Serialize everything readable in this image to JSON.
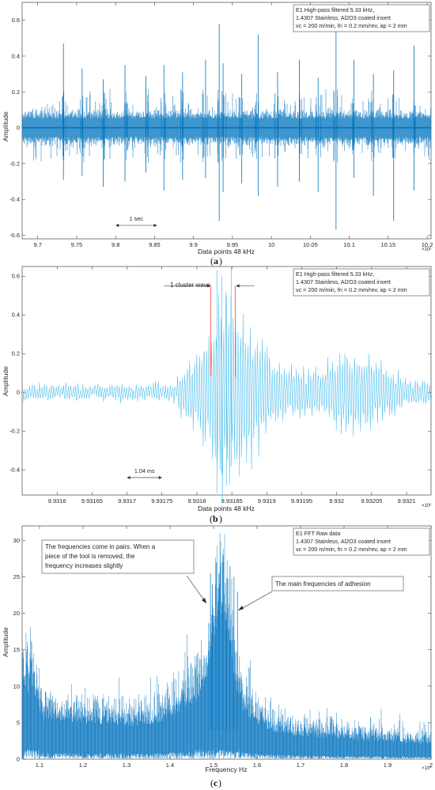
{
  "chart_data": [
    {
      "type": "line",
      "panel": "a",
      "caption": "a",
      "legend_lines": [
        "E1 High-pass filtered 5.33 kHz,",
        "1.4307 Stainless, Al2O3 coated insert",
        "vc = 200 m/min, fn = 0.2 mm/rev, ap = 2 mm"
      ],
      "xlabel": "Data points 48 kHz",
      "ylabel": "Amplitude",
      "x_exponent": "×10⁶",
      "xlim": [
        9.68,
        10.205
      ],
      "ylim": [
        -0.62,
        0.7
      ],
      "xticks": [
        9.7,
        9.75,
        9.8,
        9.85,
        9.9,
        9.95,
        10,
        10.05,
        10.1,
        10.15,
        10.2
      ],
      "xticklabels": [
        "9.7",
        "9.75",
        "9.8",
        "9.85",
        "9.9",
        "9.95",
        "10",
        "10.05",
        "10.1",
        "10.15",
        "10.2"
      ],
      "yticks": [
        -0.6,
        -0.4,
        -0.2,
        0,
        0.2,
        0.4,
        0.6
      ],
      "yticklabels": [
        "-0.6",
        "-0.4",
        "-0.2",
        "0",
        "0.2",
        "0.4",
        "0.6"
      ],
      "series_color": "#0072BD",
      "annotation": {
        "text": "1 sec",
        "x_from": 9.8,
        "x_to": 9.853,
        "y": -0.545
      },
      "spikes": [
        {
          "x": 9.733,
          "top": 0.47,
          "bottom": -0.29
        },
        {
          "x": 9.757,
          "top": 0.33,
          "bottom": -0.27
        },
        {
          "x": 9.784,
          "top": 0.27,
          "bottom": -0.33
        },
        {
          "x": 9.812,
          "top": 0.35,
          "bottom": -0.3
        },
        {
          "x": 9.839,
          "top": 0.29,
          "bottom": -0.25
        },
        {
          "x": 9.862,
          "top": 0.35,
          "bottom": -0.35
        },
        {
          "x": 9.886,
          "top": 0.31,
          "bottom": -0.29
        },
        {
          "x": 9.9155,
          "top": 0.38,
          "bottom": -0.28
        },
        {
          "x": 9.933,
          "top": 0.58,
          "bottom": -0.52
        },
        {
          "x": 9.938,
          "top": 0.36,
          "bottom": -0.36
        },
        {
          "x": 9.962,
          "top": 0.3,
          "bottom": -0.31
        },
        {
          "x": 9.983,
          "top": 0.52,
          "bottom": -0.38
        },
        {
          "x": 10.008,
          "top": 0.31,
          "bottom": -0.33
        },
        {
          "x": 10.036,
          "top": 0.38,
          "bottom": -0.3
        },
        {
          "x": 10.06,
          "top": 0.28,
          "bottom": -0.36
        },
        {
          "x": 10.083,
          "top": 0.57,
          "bottom": -0.57
        },
        {
          "x": 10.106,
          "top": 0.38,
          "bottom": -0.28
        },
        {
          "x": 10.131,
          "top": 0.3,
          "bottom": -0.38
        },
        {
          "x": 10.157,
          "top": 0.32,
          "bottom": -0.52
        },
        {
          "x": 10.183,
          "top": 0.46,
          "bottom": -0.35
        }
      ]
    },
    {
      "type": "line",
      "panel": "b",
      "caption": "b",
      "legend_lines": [
        "E1 High-pass filtered 5.33 kHz,",
        "1.4307 Stainless, Al2O3 coated insert",
        "vc = 200 m/min, fn = 0.2 mm/rev, ap = 2 mm"
      ],
      "xlabel": "Data points 48 kHz",
      "ylabel": "Amplitude",
      "x_exponent": "×10⁶",
      "xlim": [
        9.93155,
        9.932135
      ],
      "ylim": [
        -0.53,
        0.65
      ],
      "xticks": [
        9.9316,
        9.93165,
        9.9317,
        9.93175,
        9.9318,
        9.93185,
        9.9319,
        9.93195,
        9.932,
        9.93205,
        9.9321
      ],
      "xticklabels": [
        "9.9316",
        "9.93165",
        "9.9317",
        "9.93175",
        "9.9318",
        "9.93185",
        "9.9319",
        "9.93195",
        "9.932",
        "9.93205",
        "9.9321"
      ],
      "yticks": [
        -0.4,
        -0.2,
        0,
        0.2,
        0.4,
        0.6
      ],
      "yticklabels": [
        "-0.4",
        "-0.2",
        "0",
        "0.2",
        "0.4",
        "0.6"
      ],
      "series_color": "#4DBEEE",
      "peak_x": 9.93184,
      "annotation": {
        "text": "1.04 ms",
        "x_from": 9.9317,
        "x_to": 9.93175,
        "y": -0.44
      },
      "cluster": {
        "text": "1 cluster wave",
        "x_left": 9.93182,
        "x_right": 9.931855
      }
    },
    {
      "type": "line",
      "panel": "c",
      "caption": "c",
      "legend_lines": [
        "E1 FFT Raw data",
        "1.4307 Stainless, Al2O3 coated insert",
        "vc = 200 m/min, fn = 0.2 mm/rev, ap = 2 mm"
      ],
      "xlabel": "Frequency Hz",
      "ylabel": "Amplitude",
      "x_exponent": "×10⁴",
      "xlim": [
        1.06,
        2.0
      ],
      "ylim": [
        0,
        32
      ],
      "xticks": [
        1.1,
        1.2,
        1.3,
        1.4,
        1.5,
        1.6,
        1.7,
        1.8,
        1.9,
        2
      ],
      "xticklabels": [
        "1.1",
        "1.2",
        "1.3",
        "1.4",
        "1.5",
        "1.6",
        "1.7",
        "1.8",
        "1.9",
        "2"
      ],
      "yticks": [
        0,
        5,
        10,
        15,
        20,
        25,
        30
      ],
      "yticklabels": [
        "0",
        "5",
        "10",
        "15",
        "20",
        "25",
        "30"
      ],
      "series_color": "#0072BD",
      "note1": [
        "The frequencies come in pairs. When a",
        "piece of the tool is removed, the",
        "frequency increases slightly"
      ],
      "note2": "The main frequencies of adhesion"
    }
  ]
}
